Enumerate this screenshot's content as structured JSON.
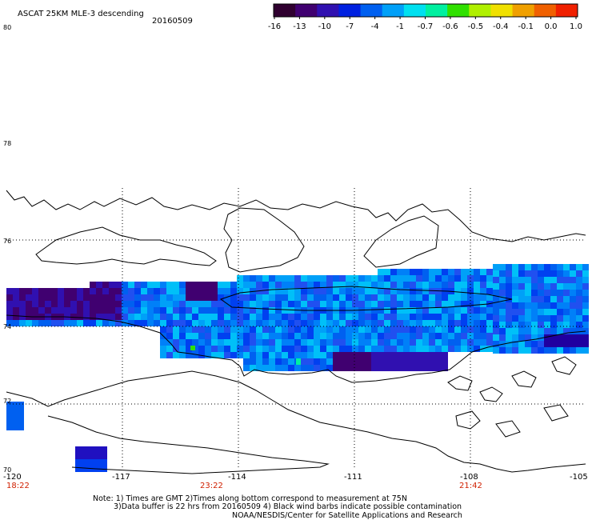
{
  "title": "ASCAT 25KM MLE-3 descending",
  "date": "20160509",
  "colorbar": {
    "colors": [
      "#300030",
      "#400070",
      "#3010b0",
      "#0020e0",
      "#0060f0",
      "#00a0f8",
      "#00e0f0",
      "#00f0a0",
      "#30e000",
      "#b0f000",
      "#f0e000",
      "#f0a000",
      "#f06000",
      "#f02000"
    ],
    "labels": [
      "-16",
      "-13",
      "-10",
      "-7",
      "-4",
      "-1",
      "-0.7",
      "-0.6",
      "-0.5",
      "-0.4",
      "-0.1",
      "0.0",
      "1.0"
    ]
  },
  "lat_labels": [
    "80",
    "78",
    "76",
    "74",
    "72",
    "70"
  ],
  "lon_labels": [
    "-120",
    "-117",
    "-114",
    "-111",
    "-108",
    "-105"
  ],
  "time_labels": [
    "18:22",
    "23:22",
    "21:42"
  ],
  "notes": [
    "Note: 1) Times are GMT 2)Times along bottom correspond to measurement at 75N",
    "3)Data buffer is 22 hrs from 20160509 4) Black wind barbs indicate possible contamination",
    "NOAA/NESDIS/Center for Satellite Applications and Research"
  ]
}
